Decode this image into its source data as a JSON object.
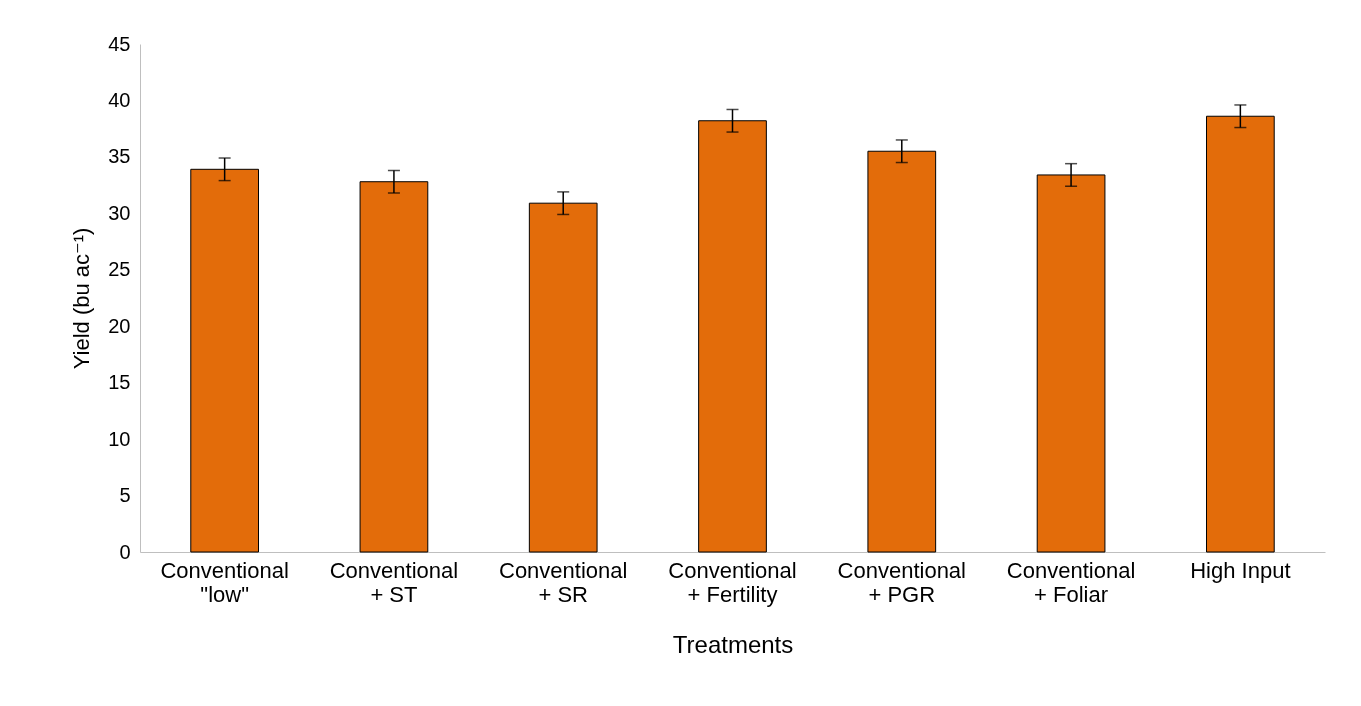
{
  "chart_data": {
    "type": "bar",
    "xlabel": "Treatments",
    "ylabel": "Yield (bu ac⁻¹)",
    "categories": [
      "Conventional \"low\"",
      "Conventional + ST",
      "Conventional + SR",
      "Conventional + Fertility",
      "Conventional + PGR",
      "Conventional + Foliar",
      "High Input"
    ],
    "values": [
      33.9,
      32.8,
      30.9,
      38.2,
      35.5,
      33.4,
      38.6
    ],
    "errors": [
      1,
      1,
      1,
      1,
      1,
      1,
      1
    ],
    "color": "#e36c0a",
    "ylim": [
      0,
      45
    ],
    "yticks": [
      0,
      5,
      10,
      15,
      20,
      25,
      30,
      35,
      40,
      45
    ],
    "grid": false
  }
}
